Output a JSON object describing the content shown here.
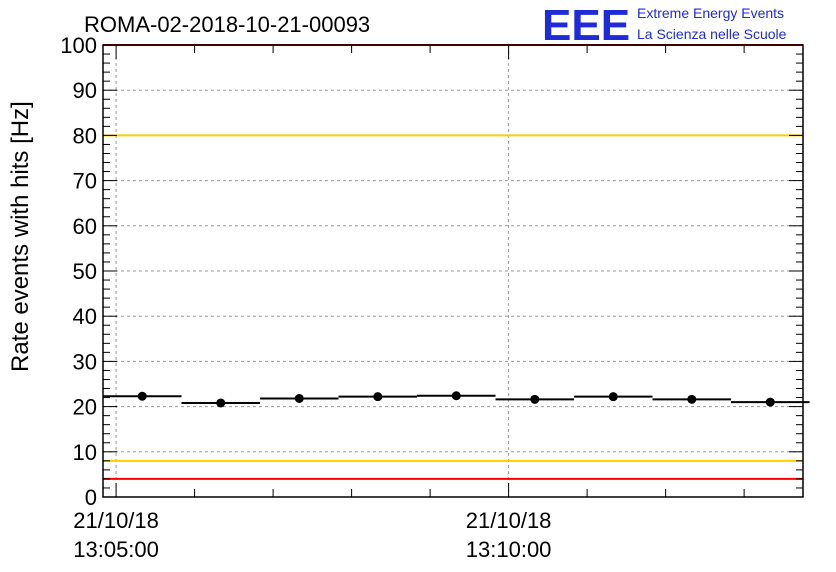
{
  "chart_data": {
    "type": "scatter",
    "title": "ROMA-02-2018-10-21-00093",
    "ylabel": "Rate events with hits [Hz]",
    "xlabel": "",
    "ylim": [
      0,
      100
    ],
    "yticks": [
      "0",
      "10",
      "20",
      "30",
      "40",
      "50",
      "60",
      "70",
      "80",
      "90",
      "100"
    ],
    "x_range_seconds": [
      -10,
      525
    ],
    "x_tick_labels": [
      {
        "x": 0,
        "date": "21/10/18",
        "time": "13:05:00"
      },
      {
        "x": 300,
        "date": "21/10/18",
        "time": "13:10:00"
      }
    ],
    "grid": true,
    "series": [
      {
        "x": [
          20,
          80,
          140,
          200,
          260,
          320,
          380,
          440,
          500
        ],
        "x_err": 30,
        "values": [
          22.3,
          20.8,
          21.8,
          22.2,
          22.4,
          21.6,
          22.2,
          21.6,
          21.0
        ]
      }
    ],
    "reference_lines": [
      {
        "y": 100,
        "color": "#ff0000"
      },
      {
        "y": 80,
        "color": "#ffcc00"
      },
      {
        "y": 8,
        "color": "#ffcc00"
      },
      {
        "y": 4,
        "color": "#ff0000"
      }
    ]
  },
  "logo": {
    "mark": "EEE",
    "line1": "Extreme Energy Events",
    "line2": "La Scienza nelle Scuole",
    "color": "#1f2bd6"
  }
}
